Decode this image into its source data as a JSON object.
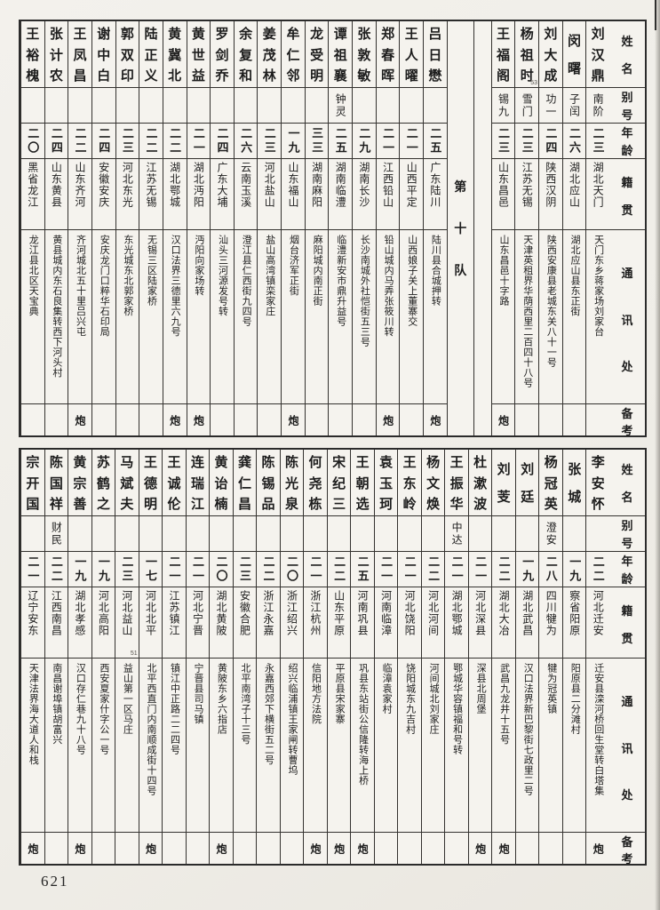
{
  "page": {
    "number": "621"
  },
  "squad_divider": "第十队",
  "row_headers": {
    "name": "姓名",
    "alias": "别号",
    "age": "年龄",
    "native": "籍贯",
    "address": "通讯处",
    "remark": "备考"
  },
  "tables": [
    {
      "id": "top",
      "columns": [
        {
          "name": "刘汉鼎",
          "alias": "南阶",
          "age": "二三",
          "native": "湖北天门",
          "address": "天门东乡蒋家场刘家台",
          "remark": ""
        },
        {
          "name": "闵曙",
          "alias": "子闰",
          "age": "二六",
          "native": "湖北应山",
          "address": "湖北应山县东正街",
          "remark": ""
        },
        {
          "name": "刘大成",
          "alias": "功一",
          "age": "二四",
          "native": "陕西汉阴",
          "address": "陕西安康县老城东关八十一号",
          "remark": ""
        },
        {
          "name": "杨祖时",
          "name_note": "53",
          "alias": "雪门",
          "age": "二三",
          "native": "江苏无锡",
          "address": "天津英租界华荫西里二百四十八号",
          "remark": ""
        },
        {
          "name": "王福阁",
          "alias": "锡九",
          "age": "二三",
          "native": "山东昌邑",
          "address": "山东昌邑十字路",
          "remark": "炮"
        },
        {
          "type": "spacer"
        },
        {
          "type": "divider"
        },
        {
          "name": "吕日懋",
          "alias": "",
          "age": "二五",
          "native": "广东陆川",
          "address": "陆川县合城押转",
          "remark": "炮"
        },
        {
          "name": "王人曜",
          "alias": "",
          "age": "二一",
          "native": "山西平定",
          "address": "山西娘子关上董寨交",
          "remark": ""
        },
        {
          "name": "郑春晖",
          "alias": "",
          "age": "二一",
          "native": "江西铅山",
          "address": "铅山城内马弄张筱川转",
          "remark": "炮"
        },
        {
          "name": "张敦敏",
          "alias": "",
          "age": "二九",
          "native": "湖南长沙",
          "address": "长沙南城外社恺街五三号",
          "remark": ""
        },
        {
          "name": "谭祖襄",
          "alias": "钟灵",
          "age": "二五",
          "native": "湖南临澧",
          "address": "临澧新安市鼎升益号",
          "remark": ""
        },
        {
          "name": "龙受明",
          "alias": "",
          "age": "三三",
          "native": "湖南麻阳",
          "address": "麻阳城内南正街",
          "remark": ""
        },
        {
          "name": "牟仁邻",
          "alias": "",
          "age": "一九",
          "native": "山东福山",
          "address": "烟台济军正街",
          "remark": "炮"
        },
        {
          "name": "姜茂林",
          "alias": "",
          "age": "二三",
          "native": "河北盐山",
          "address": "盐山高湾镇栾家庄",
          "remark": ""
        },
        {
          "name": "余复和",
          "alias": "",
          "age": "二六",
          "native": "云南玉溪",
          "address": "澄江县仁西街九四号",
          "remark": ""
        },
        {
          "name": "罗剑乔",
          "alias": "",
          "age": "二四",
          "native": "广东大埔",
          "address": "汕头三河源发号转",
          "remark": ""
        },
        {
          "name": "黄世益",
          "alias": "",
          "age": "二一",
          "native": "湖北沔阳",
          "address": "沔阳向家场转",
          "remark": "炮"
        },
        {
          "name": "黄冀北",
          "alias": "",
          "age": "二二",
          "native": "湖北鄂城",
          "address": "汉口法界三德里六九号",
          "remark": "炮"
        },
        {
          "name": "陆正义",
          "alias": "",
          "age": "二二",
          "native": "江苏无锡",
          "address": "无锡三区陆家桥",
          "remark": ""
        },
        {
          "name": "郭双印",
          "alias": "",
          "age": "二三",
          "native": "河北东光",
          "address": "东光城东北郭家桥",
          "remark": ""
        },
        {
          "name": "谢中白",
          "alias": "",
          "age": "二四",
          "native": "安徽安庆",
          "address": "安庆龙门口粹华石印局",
          "remark": ""
        },
        {
          "name": "王凤昌",
          "alias": "",
          "age": "二二",
          "native": "山东齐河",
          "address": "齐河城北五十里吕兴屯",
          "remark": "炮"
        },
        {
          "name": "张计农",
          "alias": "",
          "age": "二四",
          "native": "山东黄县",
          "address": "黄县城内东石良集转西下河头村",
          "remark": ""
        },
        {
          "name": "王裕槐",
          "alias": "",
          "age": "二〇",
          "native": "黑省龙江",
          "address": "龙江县北区天宝典",
          "remark": ""
        }
      ]
    },
    {
      "id": "bottom",
      "columns": [
        {
          "name": "李安怀",
          "alias": "",
          "age": "二二",
          "native": "河北迁安",
          "address": "迁安县滦河桥回生堂转白塔集",
          "remark": "炮"
        },
        {
          "name": "张城",
          "alias": "",
          "age": "一九",
          "native": "察省阳原",
          "address": "阳原县二分滩村",
          "remark": ""
        },
        {
          "name": "杨冠英",
          "alias": "澄安",
          "age": "二八",
          "native": "四川犍为",
          "address": "犍为冠英镇",
          "remark": ""
        },
        {
          "name": "刘廷",
          "alias": "",
          "age": "一九",
          "native": "湖北武昌",
          "address": "汉口法界新巴黎街七政里二号",
          "remark": ""
        },
        {
          "name": "刘芰",
          "alias": "",
          "age": "二二",
          "native": "湖北大冶",
          "address": "武昌九龙井十五号",
          "remark": "炮"
        },
        {
          "name": "杜漱波",
          "alias": "",
          "age": "二一",
          "native": "河北深县",
          "address": "深县北周堡",
          "remark": "炮"
        },
        {
          "name": "王振华",
          "alias": "中达",
          "age": "二一",
          "native": "湖北鄂城",
          "address": "鄂城华容镇福和号转",
          "remark": ""
        },
        {
          "name": "杨文焕",
          "alias": "",
          "age": "二二",
          "native": "河北河间",
          "address": "河间城北刘家庄",
          "remark": ""
        },
        {
          "name": "王东岭",
          "alias": "",
          "age": "二一",
          "native": "河北饶阳",
          "address": "饶阳城东九吉村",
          "remark": ""
        },
        {
          "name": "袁玉珂",
          "alias": "",
          "age": "二一",
          "native": "河南临漳",
          "address": "临漳袁家村",
          "remark": ""
        },
        {
          "name": "王朝选",
          "alias": "",
          "age": "二五",
          "native": "河南巩县",
          "address": "巩县东站街公信隆转海上桥",
          "remark": "炮"
        },
        {
          "name": "宋纪三",
          "alias": "",
          "age": "二二",
          "native": "山东平原",
          "address": "平原县宋家寨",
          "remark": "炮"
        },
        {
          "name": "何尧栋",
          "alias": "",
          "age": "二一",
          "native": "浙江杭州",
          "address": "信阳地方法院",
          "remark": "炮"
        },
        {
          "name": "陈光泉",
          "alias": "",
          "age": "二〇",
          "native": "浙江绍兴",
          "address": "绍兴临浦镇王家闸转曹坞",
          "remark": ""
        },
        {
          "name": "陈锡品",
          "alias": "",
          "age": "二二",
          "native": "浙江永嘉",
          "address": "永嘉西郊下横街五二号",
          "remark": ""
        },
        {
          "name": "龚仁昌",
          "alias": "",
          "age": "二三",
          "native": "安徽合肥",
          "address": "北平南湾子十三号",
          "remark": ""
        },
        {
          "name": "黄诒楠",
          "alias": "",
          "age": "二〇",
          "native": "湖北黄陂",
          "address": "黄陂东乡六指店",
          "remark": "炮"
        },
        {
          "name": "连瑞江",
          "alias": "",
          "age": "二一",
          "native": "河北宁晋",
          "address": "宁晋县司马镇",
          "remark": ""
        },
        {
          "name": "王诚伦",
          "alias": "",
          "age": "二一",
          "native": "江苏镇江",
          "address": "镇江中正路二二四号",
          "remark": ""
        },
        {
          "name": "王德明",
          "alias": "",
          "age": "一七",
          "native": "河北北平",
          "address": "北平西直门内南顺成街十四号",
          "remark": "炮"
        },
        {
          "name": "马斌夫",
          "alias": "",
          "age": "二三",
          "native": "河北益山",
          "native_note": "51",
          "address": "益山第一区马庄",
          "remark": ""
        },
        {
          "name": "苏鹤之",
          "alias": "",
          "age": "一九",
          "native": "河北高阳",
          "address": "西安夏家什字公一号",
          "remark": ""
        },
        {
          "name": "黄宗善",
          "alias": "",
          "age": "一九",
          "native": "湖北孝感",
          "address": "汉口存仁巷九十八号",
          "remark": "炮"
        },
        {
          "name": "陈国祥",
          "alias": "财民",
          "age": "二二",
          "native": "江西南昌",
          "address": "南昌谢埠镇胡富兴",
          "remark": ""
        },
        {
          "name": "宗开国",
          "alias": "",
          "age": "二一",
          "native": "辽宁安东",
          "address": "天津法界海大道人和栈",
          "remark": "炮"
        }
      ]
    }
  ]
}
